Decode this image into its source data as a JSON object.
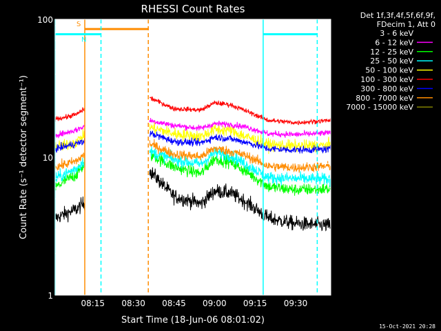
{
  "chart_data": {
    "type": "line",
    "title": "RHESSI Count Rates",
    "xlabel": "Start Time (18-Jun-06 08:01:02)",
    "ylabel": "Count Rate (s⁻¹ detector segment⁻¹)",
    "y_scale": "log",
    "ylim": [
      1,
      100
    ],
    "xlim": [
      "08:01:02",
      "09:43:00"
    ],
    "x_ticks": [
      "08:15",
      "08:30",
      "08:45",
      "09:00",
      "09:15",
      "09:30"
    ],
    "y_ticks": [
      "1",
      "10",
      "100"
    ],
    "grid": false,
    "legend_position": "top-right",
    "legend_header": [
      "Det 1f,3f,4f,5f,6f,9f,",
      "FDecim 1, Att 0"
    ],
    "timestamp": "15-Oct-2021 20:28",
    "colors": {
      "background": "#000000",
      "axis": "#ffffff",
      "saa": "#ff8c00",
      "night": "#00ffff"
    },
    "data_gap": [
      "08:12:00",
      "08:36:00"
    ],
    "time_nodes": [
      "08:01",
      "08:05",
      "08:09",
      "08:12",
      "08:36",
      "08:45",
      "08:55",
      "09:00",
      "09:06",
      "09:12",
      "09:20",
      "09:30",
      "09:43"
    ],
    "series": [
      {
        "name": "3 - 6 keV",
        "color": "#000000",
        "noise": 0.06,
        "values": [
          3.6,
          3.9,
          4.2,
          4.7,
          8.0,
          5.2,
          4.6,
          5.7,
          5.5,
          4.7,
          3.6,
          3.3,
          3.2
        ]
      },
      {
        "name": "6 - 12 keV",
        "color": "#ff00ff",
        "noise": 0.025,
        "values": [
          14.5,
          15,
          15.8,
          16.8,
          18.5,
          17.0,
          16.2,
          17.5,
          17.3,
          16.5,
          14.8,
          14.6,
          15.0
        ]
      },
      {
        "name": "12 - 25 keV",
        "color": "#00ff00",
        "noise": 0.05,
        "values": [
          6.0,
          6.8,
          7.5,
          9.0,
          10.5,
          8.5,
          7.6,
          9.8,
          9.2,
          7.8,
          6.1,
          5.8,
          5.9
        ]
      },
      {
        "name": "25 - 50 keV",
        "color": "#00ffff",
        "noise": 0.05,
        "values": [
          7.0,
          7.6,
          8.3,
          9.6,
          11.0,
          9.6,
          8.9,
          10.8,
          10.3,
          8.8,
          7.1,
          7.0,
          6.9
        ]
      },
      {
        "name": "50 - 100 keV",
        "color": "#ffff00",
        "noise": 0.05,
        "values": [
          11.8,
          12.2,
          13.0,
          14.5,
          16.5,
          14.8,
          14.1,
          15.9,
          15.6,
          14.0,
          12.3,
          12.0,
          12.2
        ]
      },
      {
        "name": "100 - 300 keV",
        "color": "#ff0000",
        "noise": 0.02,
        "values": [
          19.0,
          19.5,
          20.5,
          22.5,
          27.0,
          22.5,
          22.0,
          24.8,
          24.0,
          21.5,
          18.5,
          17.8,
          18.5
        ]
      },
      {
        "name": "300 - 800 keV",
        "color": "#0000ff",
        "noise": 0.03,
        "values": [
          11.5,
          12.0,
          12.6,
          13.0,
          15.0,
          13.0,
          12.7,
          14.0,
          13.6,
          12.8,
          11.5,
          11.3,
          11.4
        ]
      },
      {
        "name": "800 - 7000 keV",
        "color": "#ff8c00",
        "noise": 0.04,
        "values": [
          8.5,
          8.9,
          9.4,
          10.5,
          12.5,
          10.5,
          10.1,
          11.6,
          11.0,
          10.2,
          8.6,
          8.4,
          8.6
        ]
      },
      {
        "name": "7000 - 15000 keV",
        "color": "#808000",
        "noise": 0.0,
        "values": []
      }
    ],
    "annotations": [
      {
        "kind": "vline",
        "x": "08:12:00",
        "color": "#ff8c00",
        "style": "solid"
      },
      {
        "kind": "vline",
        "x": "08:35:30",
        "color": "#ff8c00",
        "style": "dashed"
      },
      {
        "kind": "bar",
        "x0": "08:12:00",
        "x1": "08:35:30",
        "y": 85,
        "color": "#ff8c00",
        "label": "S"
      },
      {
        "kind": "vline",
        "x": "08:01:02",
        "color": "#00ffff",
        "style": "solid"
      },
      {
        "kind": "vline",
        "x": "08:18:00",
        "color": "#00ffff",
        "style": "dashed"
      },
      {
        "kind": "bar",
        "x0": "08:01:02",
        "x1": "08:18:00",
        "y": 78,
        "color": "#00ffff",
        "label": "N"
      },
      {
        "kind": "vline",
        "x": "09:18:00",
        "color": "#00ffff",
        "style": "solid"
      },
      {
        "kind": "vline",
        "x": "09:38:00",
        "color": "#00ffff",
        "style": "dashed"
      },
      {
        "kind": "bar",
        "x0": "09:18:00",
        "x1": "09:38:00",
        "y": 78,
        "color": "#00ffff",
        "label": ""
      }
    ]
  }
}
